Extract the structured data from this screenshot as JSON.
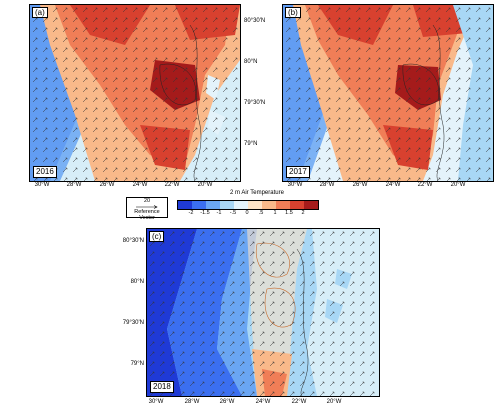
{
  "figure": {
    "panels": [
      {
        "id": "a",
        "label": "(a)",
        "year": "2016"
      },
      {
        "id": "b",
        "label": "(b)",
        "year": "2017"
      },
      {
        "id": "c",
        "label": "(c)",
        "year": "2018"
      }
    ],
    "lat_ticks": [
      "80°30'N",
      "80°N",
      "79°30'N",
      "79°N"
    ],
    "lon_ticks": [
      "30°W",
      "28°W",
      "26°W",
      "24°W",
      "22°W",
      "20°W"
    ],
    "colorbar": {
      "title": "2 m Air Temperature",
      "labels": [
        "-2",
        "-1.5",
        "-1",
        "-.5",
        "0",
        ".5",
        "1",
        "1.5",
        "2"
      ],
      "colors": [
        "#1f3ad6",
        "#3b6ff0",
        "#6aa6f3",
        "#a8d7f5",
        "#e4f3fb",
        "#fde3c6",
        "#f9b98a",
        "#f07e57",
        "#d8412f",
        "#a51b1b"
      ]
    },
    "reference_vector": {
      "value": "20",
      "label": "Reference Vector"
    }
  }
}
